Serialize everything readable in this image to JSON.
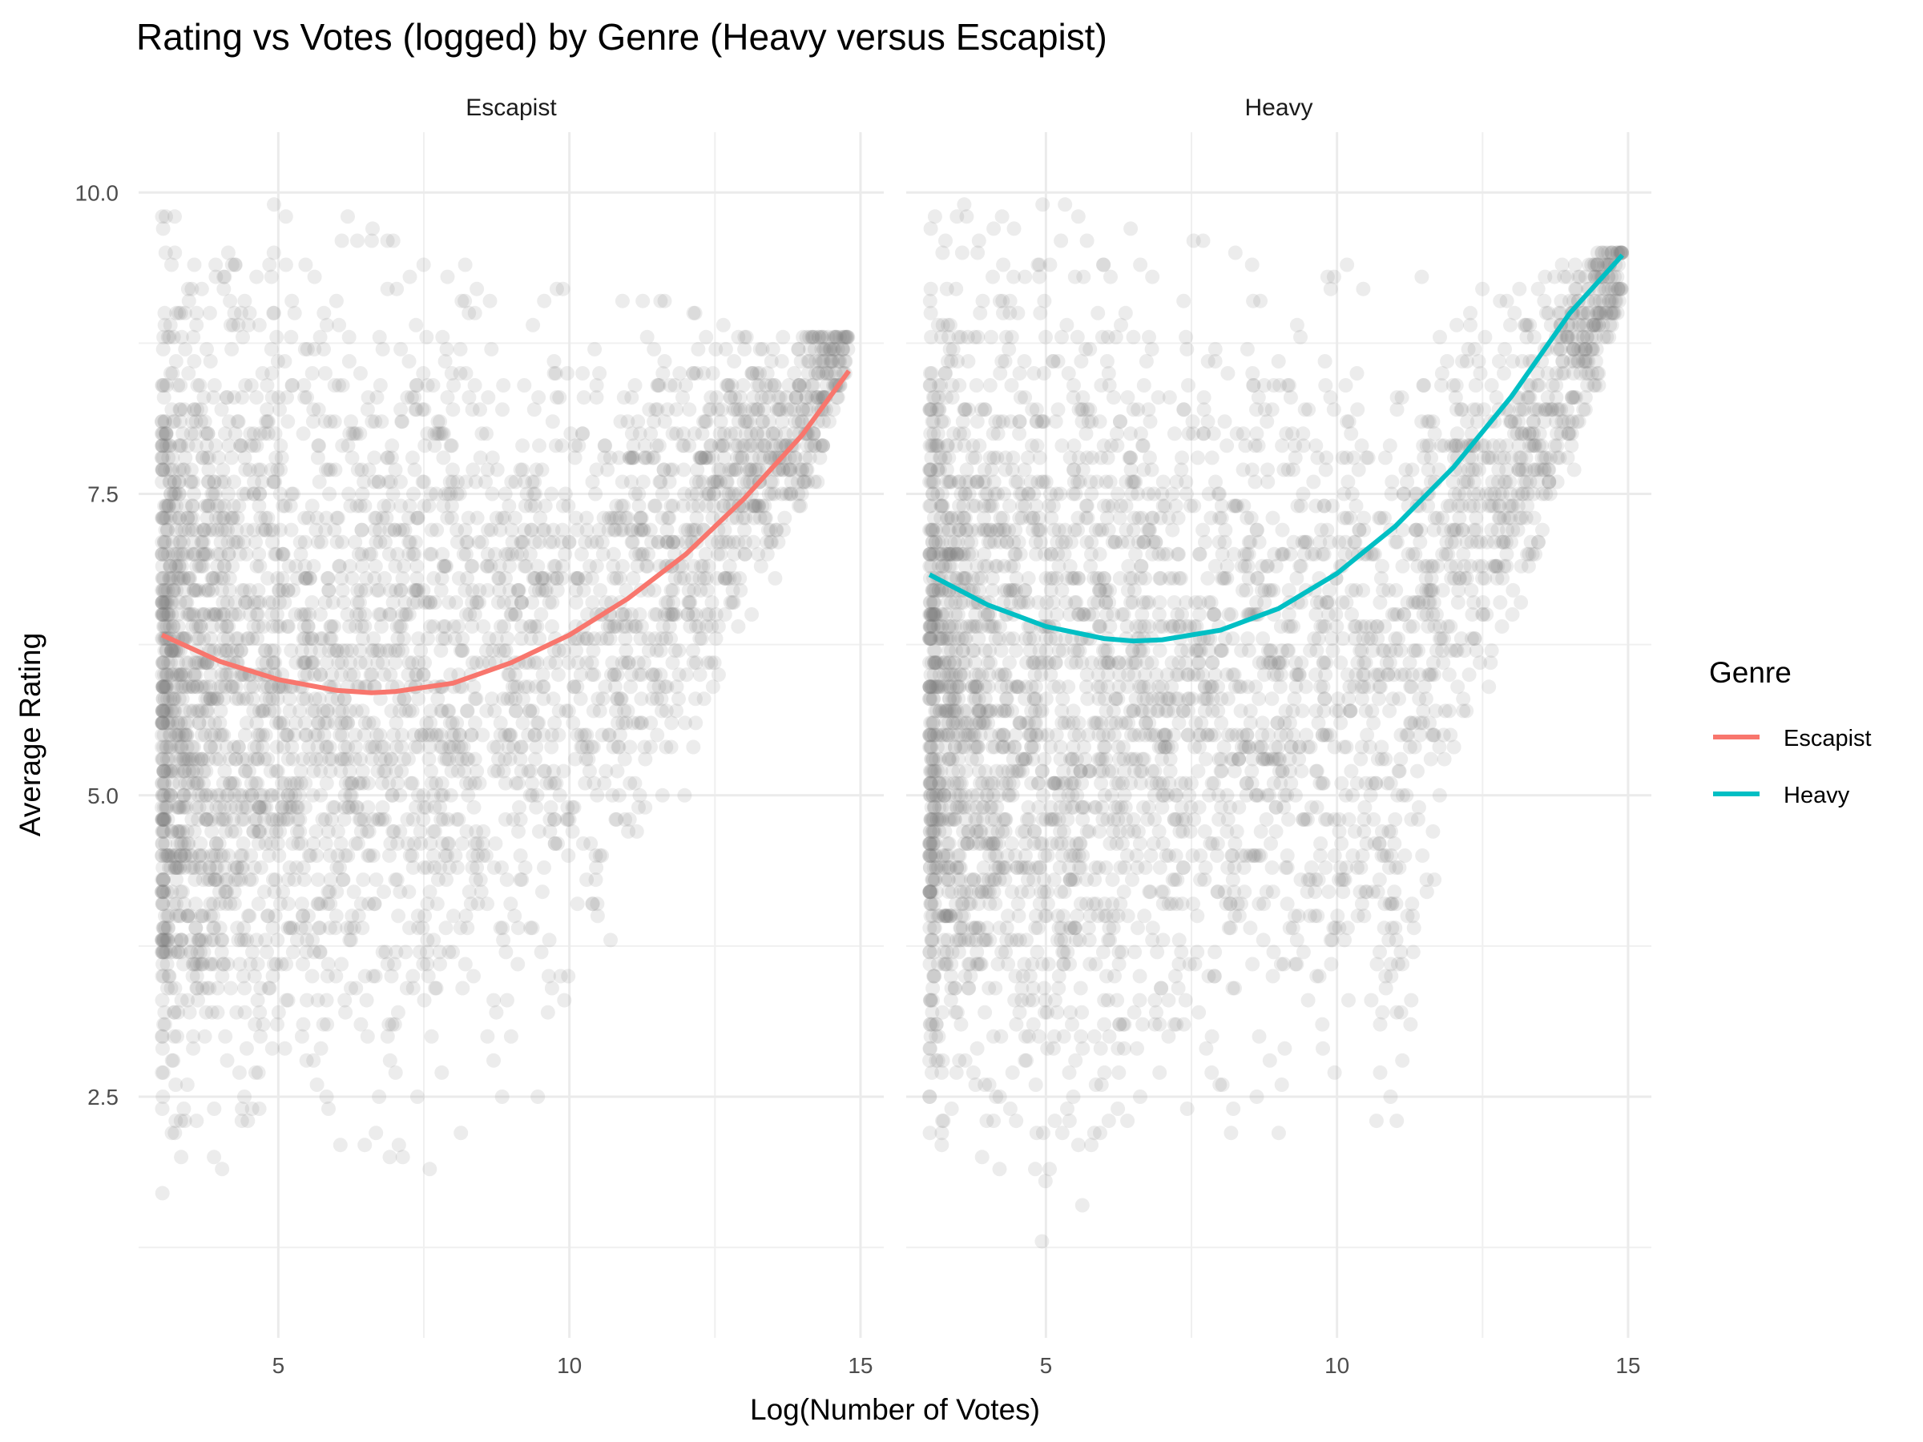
{
  "chart_data": {
    "type": "scatter",
    "title": "Rating vs Votes (logged) by Genre (Heavy versus Escapist)",
    "xlabel": "Log(Number of Votes)",
    "ylabel": "Average Rating",
    "xlim": [
      2.6,
      15.4
    ],
    "ylim": [
      0.5,
      10.5
    ],
    "x_ticks": [
      5,
      10,
      15
    ],
    "x_tick_labels": [
      "5",
      "10",
      "15"
    ],
    "y_ticks": [
      2.5,
      5.0,
      7.5,
      10.0
    ],
    "y_tick_labels": [
      "2.5",
      "5.0",
      "7.5",
      "10.0"
    ],
    "grid": true,
    "legend": {
      "title": "Genre",
      "position": "right",
      "entries": [
        {
          "label": "Escapist",
          "color": "#F8766D"
        },
        {
          "label": "Heavy",
          "color": "#00BFC4"
        }
      ]
    },
    "point_color": "#7f7f7f",
    "point_alpha": 0.15,
    "panels": [
      {
        "strip_label": "Escapist",
        "fit_color": "#F8766D",
        "fit_line": {
          "x": [
            3.0,
            4.0,
            5.0,
            6.0,
            6.6,
            7.0,
            8.0,
            9.0,
            10.0,
            11.0,
            12.0,
            13.0,
            14.0,
            14.8
          ],
          "y": [
            6.33,
            6.11,
            5.96,
            5.87,
            5.85,
            5.86,
            5.93,
            6.1,
            6.33,
            6.63,
            7.0,
            7.46,
            7.99,
            8.52
          ]
        },
        "scatter_profile": [
          {
            "x": 3.0,
            "ymin": 1.0,
            "ymax": 9.8
          },
          {
            "x": 4.0,
            "ymin": 1.0,
            "ymax": 9.8
          },
          {
            "x": 5.0,
            "ymin": 1.0,
            "ymax": 9.9
          },
          {
            "x": 6.0,
            "ymin": 1.2,
            "ymax": 9.8
          },
          {
            "x": 7.0,
            "ymin": 1.4,
            "ymax": 9.6
          },
          {
            "x": 8.0,
            "ymin": 1.6,
            "ymax": 9.6
          },
          {
            "x": 9.0,
            "ymin": 2.0,
            "ymax": 9.4
          },
          {
            "x": 10.0,
            "ymin": 2.4,
            "ymax": 9.2
          },
          {
            "x": 11.0,
            "ymin": 3.4,
            "ymax": 9.2
          },
          {
            "x": 12.0,
            "ymin": 4.5,
            "ymax": 9.0
          },
          {
            "x": 13.0,
            "ymin": 5.8,
            "ymax": 8.8
          },
          {
            "x": 14.0,
            "ymin": 6.5,
            "ymax": 8.8
          },
          {
            "x": 14.8,
            "ymin": 8.0,
            "ymax": 8.8
          }
        ]
      },
      {
        "strip_label": "Heavy",
        "fit_color": "#00BFC4",
        "fit_line": {
          "x": [
            3.0,
            4.0,
            5.0,
            6.0,
            6.5,
            7.0,
            8.0,
            9.0,
            10.0,
            11.0,
            12.0,
            13.0,
            14.0,
            14.9
          ],
          "y": [
            6.83,
            6.58,
            6.4,
            6.3,
            6.28,
            6.29,
            6.37,
            6.55,
            6.84,
            7.23,
            7.72,
            8.31,
            9.0,
            9.48
          ]
        },
        "scatter_profile": [
          {
            "x": 3.0,
            "ymin": 1.0,
            "ymax": 9.8
          },
          {
            "x": 4.0,
            "ymin": 1.0,
            "ymax": 9.9
          },
          {
            "x": 5.0,
            "ymin": 1.0,
            "ymax": 9.9
          },
          {
            "x": 6.0,
            "ymin": 1.2,
            "ymax": 9.8
          },
          {
            "x": 7.0,
            "ymin": 1.2,
            "ymax": 9.6
          },
          {
            "x": 8.0,
            "ymin": 1.6,
            "ymax": 9.6
          },
          {
            "x": 9.0,
            "ymin": 1.7,
            "ymax": 9.5
          },
          {
            "x": 10.0,
            "ymin": 1.7,
            "ymax": 9.4
          },
          {
            "x": 11.0,
            "ymin": 1.2,
            "ymax": 9.3
          },
          {
            "x": 12.0,
            "ymin": 4.4,
            "ymax": 9.2
          },
          {
            "x": 13.0,
            "ymin": 5.5,
            "ymax": 9.3
          },
          {
            "x": 14.0,
            "ymin": 7.0,
            "ymax": 9.4
          },
          {
            "x": 14.9,
            "ymin": 8.5,
            "ymax": 9.5
          }
        ]
      }
    ]
  }
}
